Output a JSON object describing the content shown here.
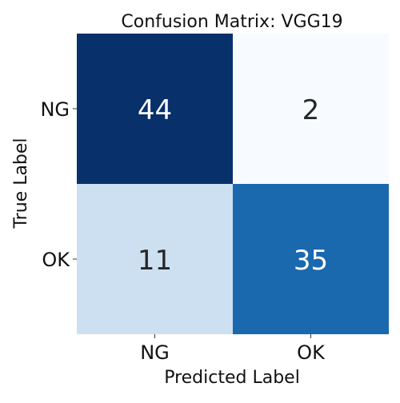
{
  "chart_data": {
    "type": "heatmap",
    "title": "Confusion Matrix: VGG19",
    "xlabel": "Predicted Label",
    "ylabel": "True Label",
    "x_categories": [
      "NG",
      "OK"
    ],
    "y_categories": [
      "NG",
      "OK"
    ],
    "values": [
      [
        44,
        2
      ],
      [
        11,
        35
      ]
    ],
    "colormap": "Blues",
    "value_range": [
      2,
      44
    ],
    "colorbar": false,
    "grid": false
  }
}
